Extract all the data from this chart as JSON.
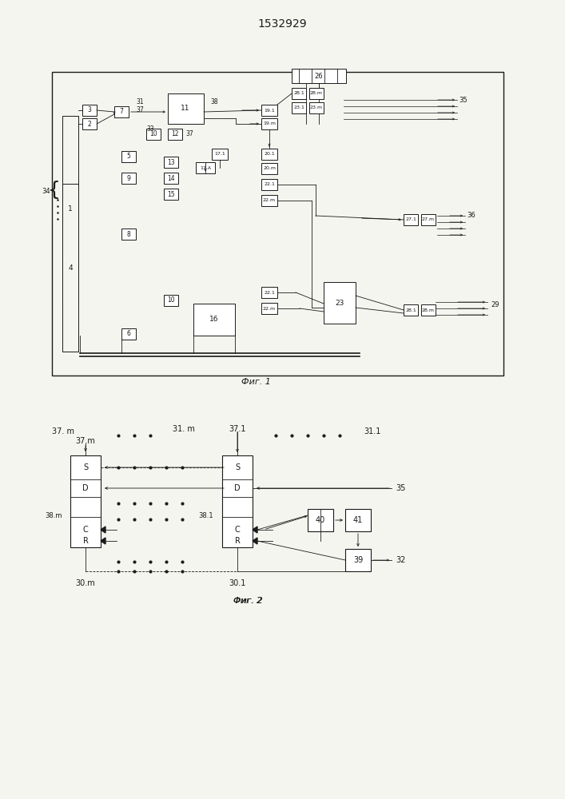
{
  "title": "1532929",
  "fig1_caption": "Фиг. 1",
  "fig2_caption": "Фиг. 2",
  "background_color": "#f5f5f0",
  "line_color": "#1a1a1a",
  "title_fontsize": 10,
  "caption_fontsize": 8
}
